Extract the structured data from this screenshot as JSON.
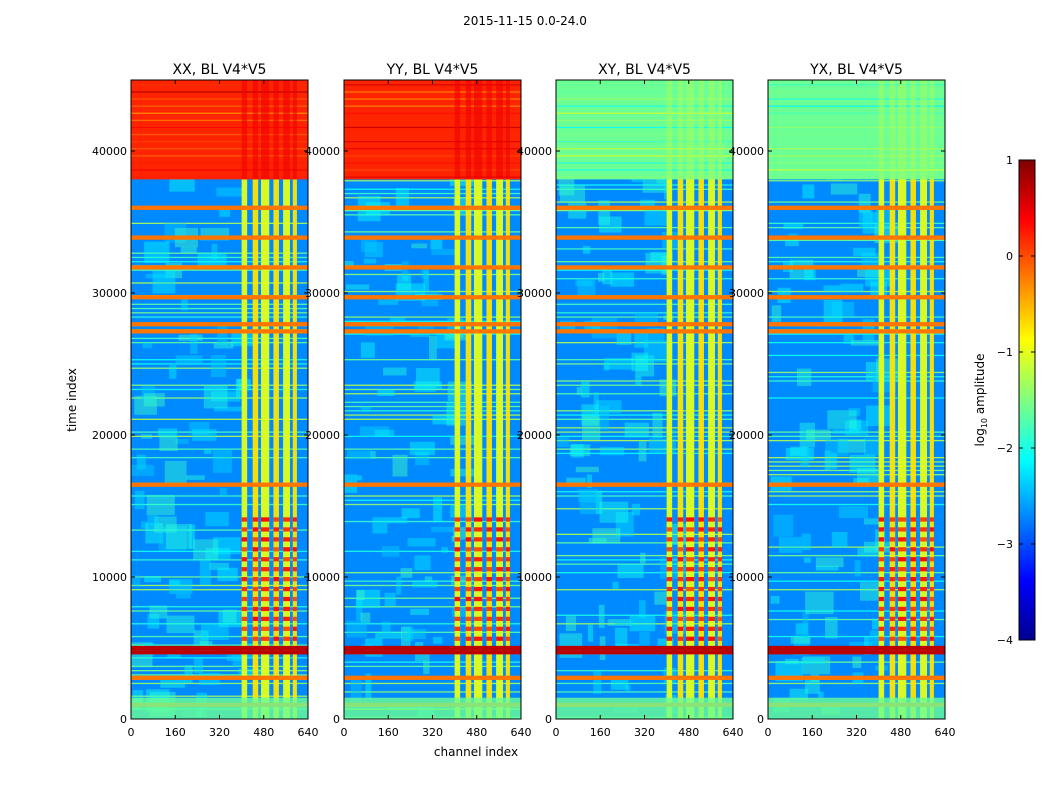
{
  "suptitle": "2015-11-15 0.0-24.0",
  "xlabel": "channel index",
  "ylabel": "time index",
  "colorbar": {
    "label_prefix": "log",
    "label_sub": "10",
    "label_suffix": " amplitude",
    "ticks": [
      "1",
      "0",
      "−1",
      "−2",
      "−3",
      "−4"
    ],
    "range": [
      -4,
      1
    ],
    "cmap": "jet"
  },
  "chart_data": {
    "type": "heatmap",
    "x_range": [
      0,
      640
    ],
    "y_range": [
      0,
      45000
    ],
    "x_ticks": [
      "0",
      "160",
      "320",
      "480",
      "640"
    ],
    "y_ticks": [
      "0",
      "10000",
      "20000",
      "30000",
      "40000"
    ],
    "y_tick_values": [
      0,
      10000,
      20000,
      30000,
      40000
    ],
    "x_tick_values": [
      0,
      160,
      320,
      480,
      640
    ],
    "panels": [
      {
        "title": "XX, BL V4*V5",
        "bg": -2.7,
        "band_start": 400,
        "band_end": 600,
        "top_level": 0.2
      },
      {
        "title": "YY, BL V4*V5",
        "bg": -2.7,
        "band_start": 400,
        "band_end": 600,
        "top_level": 0.2
      },
      {
        "title": "XY, BL V4*V5",
        "bg": -2.7,
        "band_start": 400,
        "band_end": 600,
        "top_level": -1.6
      },
      {
        "title": "YX, BL V4*V5",
        "bg": -2.7,
        "band_start": 400,
        "band_end": 600,
        "top_level": -1.6
      }
    ],
    "rfi_rows": [
      1000,
      2900,
      4700,
      5000,
      16500,
      27300,
      27800,
      29700,
      31800,
      33900,
      36000
    ],
    "top_region_start": 38000
  }
}
